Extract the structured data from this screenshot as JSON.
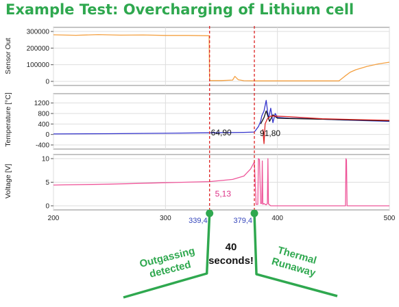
{
  "title": "Example Test: Overcharging of Lithium cell",
  "chart_data": [
    {
      "type": "line",
      "ylabel": "Sensor Out",
      "xlim": [
        200,
        500
      ],
      "ylim": [
        0,
        300000
      ],
      "yticks": [
        "0",
        "100000",
        "200000",
        "300000"
      ],
      "series": [
        {
          "color": "#f4a040",
          "x": [
            200,
            220,
            240,
            260,
            280,
            300,
            320,
            339,
            339.4,
            340,
            350,
            360,
            362,
            365,
            370,
            380,
            390,
            400,
            420,
            440,
            455,
            460,
            465,
            470,
            480,
            490,
            500
          ],
          "values": [
            280000,
            277000,
            281000,
            278000,
            279000,
            276000,
            276000,
            274000,
            8000,
            5000,
            5000,
            8000,
            30000,
            10000,
            4000,
            3000,
            3000,
            3000,
            3000,
            3000,
            3000,
            30000,
            55000,
            70000,
            90000,
            105000,
            115000
          ]
        }
      ]
    },
    {
      "type": "line",
      "ylabel": "Temperature [°C]",
      "xlim": [
        200,
        500
      ],
      "ylim": [
        -400,
        1400
      ],
      "yticks": [
        "-400",
        "0",
        "400",
        "800",
        "1200"
      ],
      "series": [
        {
          "color": "#3333cc",
          "x": [
            200,
            250,
            300,
            339.4,
            370,
            379.4,
            383,
            385,
            386,
            388,
            390,
            392,
            394,
            396,
            398,
            400,
            410,
            430,
            460,
            500
          ],
          "values": [
            20,
            30,
            45,
            64.9,
            80,
            91.8,
            300,
            500,
            700,
            900,
            1300,
            600,
            1000,
            450,
            800,
            650,
            620,
            600,
            550,
            500
          ]
        },
        {
          "color": "#111111",
          "x": [
            385,
            388,
            390,
            393,
            396,
            400,
            410,
            440,
            500
          ],
          "values": [
            400,
            650,
            900,
            500,
            750,
            620,
            610,
            580,
            520
          ]
        },
        {
          "color": "#dd2222",
          "x": [
            387,
            388,
            389,
            391,
            394,
            398,
            410,
            440,
            500
          ],
          "values": [
            200,
            -350,
            400,
            600,
            700,
            700,
            680,
            600,
            540
          ]
        }
      ],
      "annotations": [
        "64,90",
        "91,80"
      ]
    },
    {
      "type": "line",
      "ylabel": "Voltage [V]",
      "xlim": [
        200,
        500
      ],
      "ylim": [
        0,
        10
      ],
      "yticks": [
        "0",
        "5",
        "10"
      ],
      "xticks": [
        "200",
        "300",
        "400",
        "500"
      ],
      "series": [
        {
          "color": "#ee5599",
          "x": [
            200,
            250,
            300,
            339.4,
            360,
            370,
            376,
            379.4,
            381,
            382.5,
            383,
            384,
            385,
            386,
            386.5,
            387,
            388,
            389,
            390,
            391,
            391.5,
            392,
            393,
            394,
            460.8,
            461.2,
            461.7,
            462.2,
            500
          ],
          "values": [
            4.4,
            4.6,
            4.9,
            5.13,
            5.6,
            6.3,
            7.8,
            9.3,
            0.3,
            0.3,
            10,
            9.8,
            0.5,
            0.5,
            9.5,
            0.3,
            0.5,
            0.3,
            0.2,
            0.5,
            10,
            0.4,
            0.2,
            0,
            0,
            10,
            9.7,
            0,
            0
          ]
        }
      ],
      "annotations": [
        "5,13"
      ]
    }
  ],
  "markers": {
    "outgassing_time": 339.4,
    "runaway_time": 379.4,
    "outgassing_label": "339,4",
    "runaway_label": "379,4"
  },
  "callouts": {
    "left_line1": "Outgassing",
    "left_line2": "detected",
    "middle_line1": "40",
    "middle_line2": "seconds!",
    "right_line1": "Thermal",
    "right_line2": "Runaway"
  },
  "colors": {
    "title": "#2fa84f",
    "marker_line": "#dd2222",
    "callout": "#2fa84f"
  }
}
